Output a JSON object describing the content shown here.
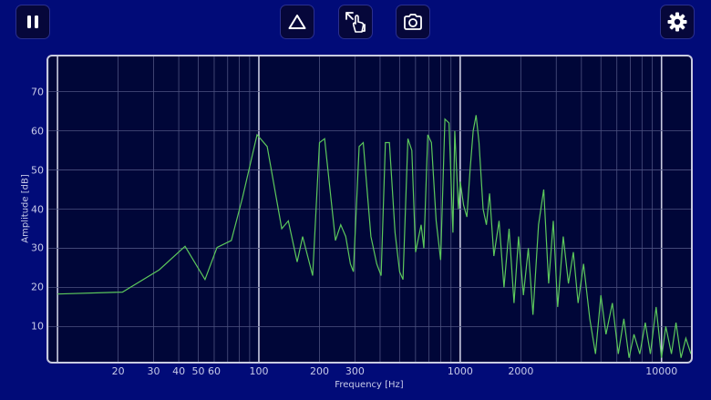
{
  "toolbar": {
    "pause_icon": "pause-icon",
    "triangle_icon": "triangle-icon",
    "expand_touch_icon": "expand-touch-icon",
    "camera_icon": "camera-icon",
    "settings_icon": "gear-icon"
  },
  "colors": {
    "background": "#010b78",
    "plot_background": "#000638",
    "trace": "#5cc85c",
    "grid": "#4d5280",
    "decade_line": "#c9cbe0"
  },
  "chart_data": {
    "type": "line",
    "title": "",
    "xlabel": "Frequency [Hz]",
    "ylabel": "Amplitude [dB]",
    "x_scale": "log",
    "xlim": [
      9,
      14000
    ],
    "ylim": [
      1,
      79
    ],
    "grid": true,
    "x_tick_labels": [
      {
        "v": 20,
        "t": "20"
      },
      {
        "v": 30,
        "t": "30"
      },
      {
        "v": 40,
        "t": "40"
      },
      {
        "v": 50,
        "t": "50"
      },
      {
        "v": 60,
        "t": "60"
      },
      {
        "v": 100,
        "t": "100"
      },
      {
        "v": 200,
        "t": "200"
      },
      {
        "v": 300,
        "t": "300"
      },
      {
        "v": 1000,
        "t": "1000"
      },
      {
        "v": 2000,
        "t": "2000"
      },
      {
        "v": 10000,
        "t": "10000"
      }
    ],
    "y_ticks": [
      10,
      20,
      30,
      40,
      50,
      60,
      70
    ],
    "series": [
      {
        "color": "#5cc85c",
        "points": [
          [
            10,
            18.3
          ],
          [
            21,
            18.8
          ],
          [
            32,
            24.5
          ],
          [
            43,
            30.5
          ],
          [
            54,
            22
          ],
          [
            62,
            30.2
          ],
          [
            73,
            32
          ],
          [
            83,
            43
          ],
          [
            98,
            59
          ],
          [
            110,
            56
          ],
          [
            130,
            35
          ],
          [
            140,
            37
          ],
          [
            155,
            26.5
          ],
          [
            165,
            33
          ],
          [
            185,
            23
          ],
          [
            200,
            57
          ],
          [
            212,
            58
          ],
          [
            240,
            32
          ],
          [
            255,
            36
          ],
          [
            270,
            33
          ],
          [
            285,
            26
          ],
          [
            295,
            24
          ],
          [
            315,
            56
          ],
          [
            330,
            57
          ],
          [
            360,
            33
          ],
          [
            385,
            26
          ],
          [
            405,
            23
          ],
          [
            425,
            57
          ],
          [
            445,
            57
          ],
          [
            475,
            34
          ],
          [
            500,
            24
          ],
          [
            520,
            22
          ],
          [
            550,
            58
          ],
          [
            575,
            55
          ],
          [
            600,
            29
          ],
          [
            640,
            36
          ],
          [
            660,
            30
          ],
          [
            690,
            59
          ],
          [
            720,
            57
          ],
          [
            760,
            37
          ],
          [
            800,
            27
          ],
          [
            840,
            63
          ],
          [
            880,
            62
          ],
          [
            920,
            34
          ],
          [
            940,
            60
          ],
          [
            980,
            40
          ],
          [
            1000,
            47
          ],
          [
            1040,
            41
          ],
          [
            1080,
            38
          ],
          [
            1120,
            50
          ],
          [
            1160,
            60
          ],
          [
            1200,
            64
          ],
          [
            1240,
            57
          ],
          [
            1300,
            40
          ],
          [
            1350,
            36
          ],
          [
            1400,
            44
          ],
          [
            1470,
            28
          ],
          [
            1560,
            37
          ],
          [
            1650,
            20
          ],
          [
            1750,
            35
          ],
          [
            1850,
            16
          ],
          [
            1950,
            33
          ],
          [
            2060,
            18
          ],
          [
            2180,
            30
          ],
          [
            2300,
            13
          ],
          [
            2450,
            36
          ],
          [
            2600,
            45
          ],
          [
            2750,
            21
          ],
          [
            2900,
            37
          ],
          [
            3050,
            15
          ],
          [
            3250,
            33
          ],
          [
            3450,
            21
          ],
          [
            3650,
            29
          ],
          [
            3850,
            16
          ],
          [
            4100,
            26
          ],
          [
            4400,
            12
          ],
          [
            4700,
            3
          ],
          [
            5000,
            18
          ],
          [
            5300,
            8
          ],
          [
            5700,
            16
          ],
          [
            6100,
            3
          ],
          [
            6500,
            12
          ],
          [
            6900,
            2
          ],
          [
            7300,
            8
          ],
          [
            7800,
            3
          ],
          [
            8300,
            11
          ],
          [
            8800,
            3
          ],
          [
            9400,
            15
          ],
          [
            10000,
            2
          ],
          [
            10500,
            10
          ],
          [
            11200,
            3
          ],
          [
            11800,
            11
          ],
          [
            12500,
            2
          ],
          [
            13200,
            7
          ],
          [
            14000,
            3
          ]
        ]
      }
    ]
  }
}
